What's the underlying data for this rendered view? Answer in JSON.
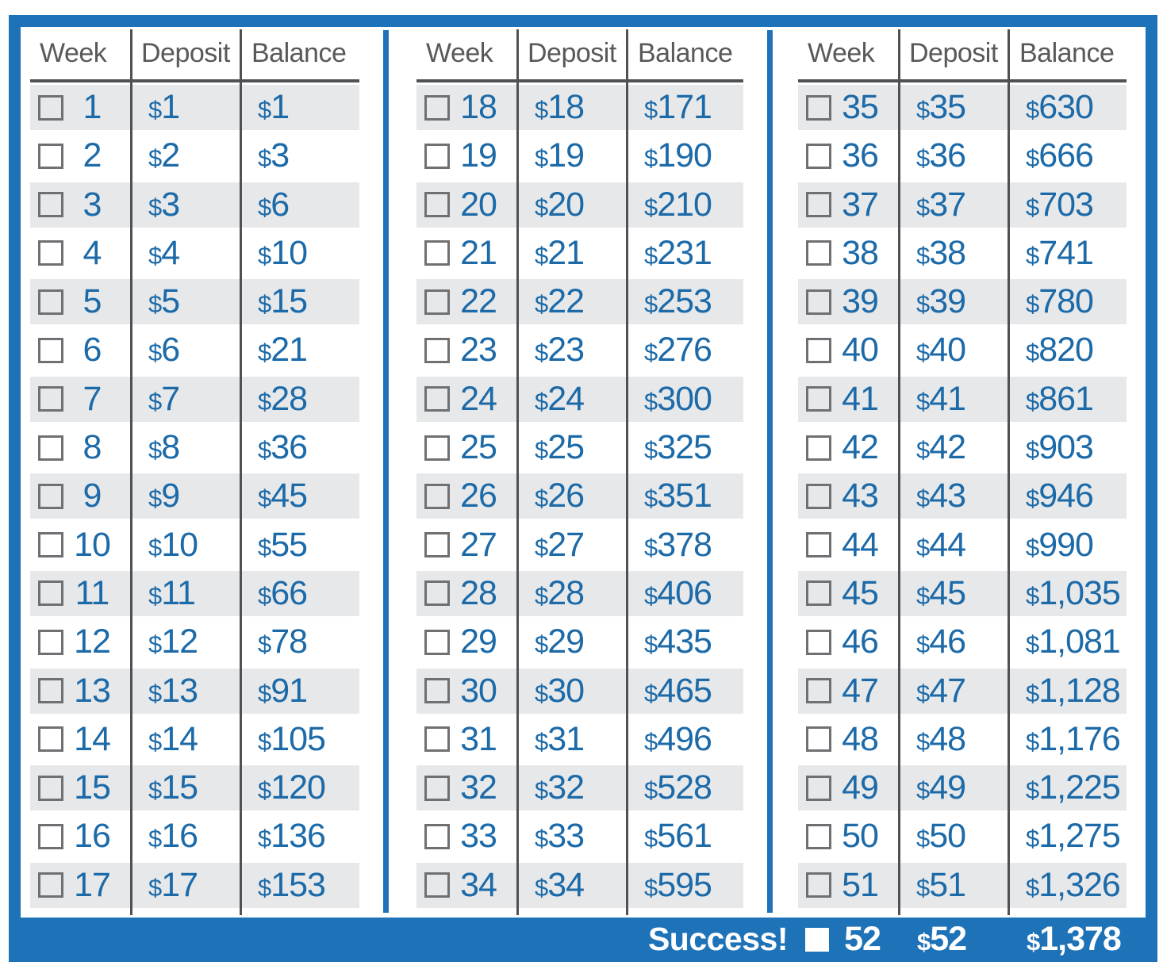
{
  "colors": {
    "blue": "#1e73b8",
    "text_blue": "#1c6aa8",
    "shade": "#e7e8ea",
    "line": "#505154",
    "header_gray": "#58595b",
    "checkbox_gray": "#6f7073",
    "white": "#ffffff"
  },
  "headers": {
    "week": "Week",
    "deposit": "Deposit",
    "balance": "Balance"
  },
  "tables": [
    {
      "rows": [
        {
          "week": "1",
          "deposit": "$1",
          "balance": "$1"
        },
        {
          "week": "2",
          "deposit": "$2",
          "balance": "$3"
        },
        {
          "week": "3",
          "deposit": "$3",
          "balance": "$6"
        },
        {
          "week": "4",
          "deposit": "$4",
          "balance": "$10"
        },
        {
          "week": "5",
          "deposit": "$5",
          "balance": "$15"
        },
        {
          "week": "6",
          "deposit": "$6",
          "balance": "$21"
        },
        {
          "week": "7",
          "deposit": "$7",
          "balance": "$28"
        },
        {
          "week": "8",
          "deposit": "$8",
          "balance": "$36"
        },
        {
          "week": "9",
          "deposit": "$9",
          "balance": "$45"
        },
        {
          "week": "10",
          "deposit": "$10",
          "balance": "$55"
        },
        {
          "week": "11",
          "deposit": "$11",
          "balance": "$66"
        },
        {
          "week": "12",
          "deposit": "$12",
          "balance": "$78"
        },
        {
          "week": "13",
          "deposit": "$13",
          "balance": "$91"
        },
        {
          "week": "14",
          "deposit": "$14",
          "balance": "$105"
        },
        {
          "week": "15",
          "deposit": "$15",
          "balance": "$120"
        },
        {
          "week": "16",
          "deposit": "$16",
          "balance": "$136"
        },
        {
          "week": "17",
          "deposit": "$17",
          "balance": "$153"
        }
      ]
    },
    {
      "rows": [
        {
          "week": "18",
          "deposit": "$18",
          "balance": "$171"
        },
        {
          "week": "19",
          "deposit": "$19",
          "balance": "$190"
        },
        {
          "week": "20",
          "deposit": "$20",
          "balance": "$210"
        },
        {
          "week": "21",
          "deposit": "$21",
          "balance": "$231"
        },
        {
          "week": "22",
          "deposit": "$22",
          "balance": "$253"
        },
        {
          "week": "23",
          "deposit": "$23",
          "balance": "$276"
        },
        {
          "week": "24",
          "deposit": "$24",
          "balance": "$300"
        },
        {
          "week": "25",
          "deposit": "$25",
          "balance": "$325"
        },
        {
          "week": "26",
          "deposit": "$26",
          "balance": "$351"
        },
        {
          "week": "27",
          "deposit": "$27",
          "balance": "$378"
        },
        {
          "week": "28",
          "deposit": "$28",
          "balance": "$406"
        },
        {
          "week": "29",
          "deposit": "$29",
          "balance": "$435"
        },
        {
          "week": "30",
          "deposit": "$30",
          "balance": "$465"
        },
        {
          "week": "31",
          "deposit": "$31",
          "balance": "$496"
        },
        {
          "week": "32",
          "deposit": "$32",
          "balance": "$528"
        },
        {
          "week": "33",
          "deposit": "$33",
          "balance": "$561"
        },
        {
          "week": "34",
          "deposit": "$34",
          "balance": "$595"
        }
      ]
    },
    {
      "rows": [
        {
          "week": "35",
          "deposit": "$35",
          "balance": "$630"
        },
        {
          "week": "36",
          "deposit": "$36",
          "balance": "$666"
        },
        {
          "week": "37",
          "deposit": "$37",
          "balance": "$703"
        },
        {
          "week": "38",
          "deposit": "$38",
          "balance": "$741"
        },
        {
          "week": "39",
          "deposit": "$39",
          "balance": "$780"
        },
        {
          "week": "40",
          "deposit": "$40",
          "balance": "$820"
        },
        {
          "week": "41",
          "deposit": "$41",
          "balance": "$861"
        },
        {
          "week": "42",
          "deposit": "$42",
          "balance": "$903"
        },
        {
          "week": "43",
          "deposit": "$43",
          "balance": "$946"
        },
        {
          "week": "44",
          "deposit": "$44",
          "balance": "$990"
        },
        {
          "week": "45",
          "deposit": "$45",
          "balance": "$1,035"
        },
        {
          "week": "46",
          "deposit": "$46",
          "balance": "$1,081"
        },
        {
          "week": "47",
          "deposit": "$47",
          "balance": "$1,128"
        },
        {
          "week": "48",
          "deposit": "$48",
          "balance": "$1,176"
        },
        {
          "week": "49",
          "deposit": "$49",
          "balance": "$1,225"
        },
        {
          "week": "50",
          "deposit": "$50",
          "balance": "$1,275"
        },
        {
          "week": "51",
          "deposit": "$51",
          "balance": "$1,326"
        }
      ]
    }
  ],
  "footer": {
    "label": "Success!",
    "week": "52",
    "deposit": "$52",
    "balance": "$1,378"
  }
}
